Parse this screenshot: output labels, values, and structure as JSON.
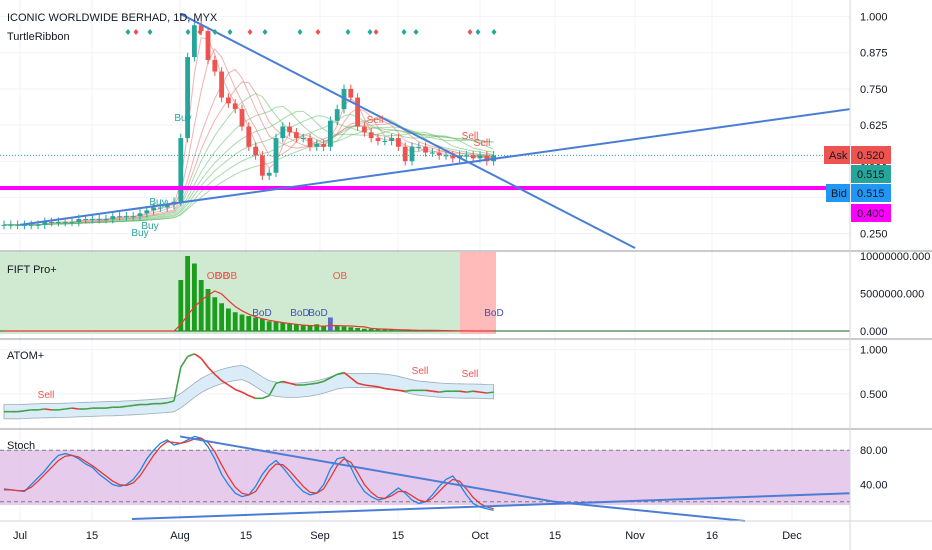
{
  "header": {
    "title": "ICONIC WORLDWIDE BERHAD, 1D, MYX",
    "indicator": "TurtleRibbon"
  },
  "colors": {
    "up": "#26a69a",
    "down": "#ef5350",
    "trend": "#4a7ed6",
    "bid_line": "#ff00ff",
    "ask": "#ef5350",
    "bid": "#2196f3",
    "last": "#26a69a",
    "level": "#ff00ff"
  },
  "price_labels": [
    {
      "tag": "Ask",
      "value": "0.520",
      "color": "#ef5350"
    },
    {
      "tag": "",
      "value": "0.515",
      "color": "#26a69a"
    },
    {
      "tag": "Bid",
      "value": "0.515",
      "color": "#2196f3"
    },
    {
      "tag": "",
      "value": "0.400",
      "color": "#ff00ff"
    }
  ],
  "panes": [
    {
      "name": "TurtleRibbon"
    },
    {
      "name": "FIFT Pro+"
    },
    {
      "name": "ATOM+"
    },
    {
      "name": "Stoch"
    }
  ],
  "chart_data": [
    {
      "type": "candlestick",
      "pane": "price",
      "title": "ICONIC WORLDWIDE BERHAD, 1D, MYX",
      "x_ticks": [
        "Jul",
        "15",
        "Aug",
        "15",
        "Sep",
        "15",
        "Oct",
        "15",
        "Nov",
        "16",
        "Dec"
      ],
      "y_ticks": [
        "1.000",
        "0.875",
        "0.750",
        "0.625",
        "0.500",
        "0.375",
        "0.250"
      ],
      "ylim": [
        0.2,
        1.04
      ],
      "approx_close": [
        0.28,
        0.28,
        0.28,
        0.28,
        0.28,
        0.28,
        0.29,
        0.29,
        0.29,
        0.29,
        0.29,
        0.3,
        0.3,
        0.3,
        0.3,
        0.3,
        0.31,
        0.31,
        0.31,
        0.31,
        0.32,
        0.33,
        0.34,
        0.34,
        0.35,
        0.36,
        0.58,
        0.86,
        0.97,
        0.95,
        0.85,
        0.81,
        0.72,
        0.7,
        0.68,
        0.62,
        0.55,
        0.52,
        0.45,
        0.46,
        0.58,
        0.62,
        0.6,
        0.58,
        0.58,
        0.55,
        0.56,
        0.55,
        0.64,
        0.68,
        0.75,
        0.72,
        0.62,
        0.6,
        0.58,
        0.57,
        0.57,
        0.58,
        0.55,
        0.5,
        0.55,
        0.55,
        0.53,
        0.53,
        0.52,
        0.52,
        0.51,
        0.52,
        0.52,
        0.51,
        0.52,
        0.5,
        0.52
      ],
      "trendlines": [
        {
          "from": [
            "Jul",
            0.28
          ],
          "to": [
            "Dec",
            0.68
          ]
        },
        {
          "from": [
            "Aug",
            1.01
          ],
          "to": [
            "Nov",
            0.2
          ]
        }
      ],
      "levels": [
        0.515
      ],
      "annotations": [
        "Buy",
        "Buy",
        "Buy",
        "Buy",
        "Sell",
        "Sell",
        "Sell"
      ]
    },
    {
      "type": "bar",
      "pane": "FIFT Pro+",
      "y_ticks": [
        "10000000.000",
        "5000000.000",
        "0.000"
      ],
      "ylim": [
        0,
        10000000
      ],
      "values": [
        0,
        0,
        0,
        0,
        0,
        0,
        0,
        0,
        0,
        0,
        0,
        0,
        0,
        0,
        0,
        0,
        0,
        0,
        0,
        0,
        0,
        0,
        0,
        0,
        0,
        0,
        6800000,
        10000000,
        9000000,
        6800000,
        5600000,
        4500000,
        3700000,
        3000000,
        2500000,
        2200000,
        2000000,
        1800000,
        1600000,
        1300000,
        1200000,
        1100000,
        1000000,
        900000,
        800000,
        800000,
        900000,
        700000,
        1800000,
        800000,
        600000,
        500000,
        400000,
        300000,
        300000,
        300000,
        200000,
        200000,
        100000,
        100000,
        100000,
        100000,
        100000,
        100000,
        0,
        0,
        0,
        0,
        0,
        0,
        0,
        0,
        0
      ],
      "annotations": [
        "OB",
        "OB",
        "OB",
        "OB",
        "BoD",
        "BoD",
        "BoD",
        "BoD"
      ]
    },
    {
      "type": "line",
      "pane": "ATOM+",
      "y_ticks": [
        "1.000",
        "0.500"
      ],
      "ylim": [
        0.15,
        1.05
      ],
      "values": [
        0.3,
        0.3,
        0.3,
        0.31,
        0.32,
        0.32,
        0.33,
        0.32,
        0.32,
        0.33,
        0.34,
        0.33,
        0.33,
        0.34,
        0.34,
        0.34,
        0.35,
        0.35,
        0.36,
        0.37,
        0.38,
        0.38,
        0.39,
        0.39,
        0.4,
        0.42,
        0.8,
        0.92,
        0.95,
        0.9,
        0.8,
        0.72,
        0.65,
        0.6,
        0.55,
        0.52,
        0.48,
        0.45,
        0.45,
        0.48,
        0.62,
        0.64,
        0.62,
        0.6,
        0.6,
        0.61,
        0.62,
        0.64,
        0.68,
        0.72,
        0.74,
        0.68,
        0.62,
        0.6,
        0.59,
        0.58,
        0.56,
        0.55,
        0.54,
        0.53,
        0.54,
        0.54,
        0.54,
        0.53,
        0.52,
        0.53,
        0.53,
        0.53,
        0.52,
        0.53,
        0.52,
        0.51,
        0.52
      ],
      "annotations": [
        "Sell",
        "Sell",
        "Sell"
      ]
    },
    {
      "type": "line",
      "pane": "Stoch",
      "y_ticks": [
        "80.00",
        "40.00"
      ],
      "ylim": [
        0,
        100
      ],
      "series": [
        {
          "values": [
            35,
            34,
            33,
            32,
            40,
            48,
            56,
            66,
            74,
            76,
            74,
            70,
            64,
            60,
            52,
            46,
            40,
            38,
            40,
            46,
            56,
            70,
            80,
            88,
            92,
            86,
            88,
            92,
            96,
            94,
            84,
            70,
            52,
            40,
            30,
            26,
            28,
            38,
            52,
            62,
            68,
            60,
            50,
            40,
            32,
            28,
            30,
            40,
            58,
            70,
            72,
            60,
            44,
            32,
            26,
            22,
            24,
            30,
            36,
            30,
            22,
            18,
            20,
            28,
            38,
            46,
            50,
            40,
            28,
            18,
            14,
            12,
            10
          ]
        },
        {
          "values": [
            34,
            34,
            33,
            33,
            37,
            44,
            52,
            60,
            68,
            73,
            74,
            72,
            67,
            62,
            56,
            50,
            44,
            40,
            39,
            42,
            50,
            62,
            74,
            84,
            90,
            89,
            88,
            90,
            93,
            94,
            89,
            78,
            63,
            49,
            37,
            30,
            28,
            32,
            44,
            56,
            64,
            63,
            56,
            47,
            38,
            31,
            30,
            35,
            48,
            62,
            70,
            66,
            54,
            40,
            31,
            25,
            24,
            27,
            32,
            32,
            27,
            22,
            20,
            24,
            32,
            40,
            46,
            44,
            35,
            25,
            18,
            14,
            12
          ]
        }
      ],
      "levels": [
        80,
        20
      ],
      "trendlines": [
        {
          "from": [
            "Aug",
            96
          ],
          "to": [
            "15",
            20
          ]
        },
        {
          "from": [
            "Aug",
            0
          ],
          "to": [
            "Dec",
            30
          ]
        }
      ]
    }
  ]
}
